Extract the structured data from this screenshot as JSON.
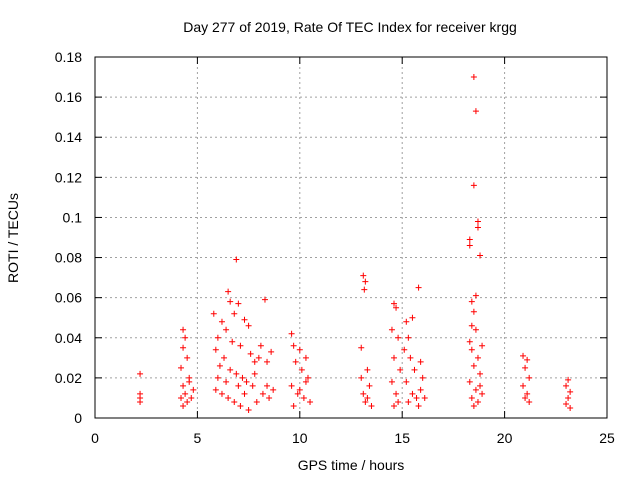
{
  "chart_data": {
    "type": "scatter",
    "title": "Day 277 of 2019, Rate Of TEC Index for receiver krgg",
    "xlabel": "GPS time / hours",
    "ylabel": "ROTI / TECUs",
    "xlim": [
      0,
      25
    ],
    "ylim": [
      0,
      0.18
    ],
    "xticks": [
      0,
      5,
      10,
      15,
      20,
      25
    ],
    "xtick_labels": [
      "0",
      "5",
      "10",
      "15",
      "20",
      "25"
    ],
    "yticks": [
      0,
      0.02,
      0.04,
      0.06,
      0.08,
      0.1,
      0.12,
      0.14,
      0.16,
      0.18
    ],
    "ytick_labels": [
      "0",
      "0.02",
      "0.04",
      "0.06",
      "0.08",
      "0.1",
      "0.12",
      "0.14",
      "0.16",
      "0.18"
    ],
    "grid": true,
    "marker": "+",
    "series_color": "#ff0000",
    "series": [
      {
        "name": "ROTI",
        "points": [
          [
            2.2,
            0.022
          ],
          [
            2.2,
            0.012
          ],
          [
            2.2,
            0.01
          ],
          [
            2.2,
            0.008
          ],
          [
            4.3,
            0.044
          ],
          [
            4.4,
            0.04
          ],
          [
            4.3,
            0.035
          ],
          [
            4.5,
            0.03
          ],
          [
            4.2,
            0.025
          ],
          [
            4.6,
            0.02
          ],
          [
            4.3,
            0.016
          ],
          [
            4.4,
            0.012
          ],
          [
            4.7,
            0.01
          ],
          [
            4.5,
            0.008
          ],
          [
            4.3,
            0.006
          ],
          [
            4.8,
            0.014
          ],
          [
            4.6,
            0.018
          ],
          [
            4.2,
            0.01
          ],
          [
            5.8,
            0.052
          ],
          [
            6.5,
            0.063
          ],
          [
            6.6,
            0.058
          ],
          [
            6.9,
            0.079
          ],
          [
            7.0,
            0.057
          ],
          [
            6.8,
            0.052
          ],
          [
            7.3,
            0.049
          ],
          [
            7.5,
            0.046
          ],
          [
            6.2,
            0.048
          ],
          [
            6.4,
            0.044
          ],
          [
            6.0,
            0.04
          ],
          [
            6.7,
            0.038
          ],
          [
            7.1,
            0.036
          ],
          [
            5.9,
            0.034
          ],
          [
            6.3,
            0.03
          ],
          [
            7.6,
            0.032
          ],
          [
            7.8,
            0.028
          ],
          [
            8.0,
            0.03
          ],
          [
            8.3,
            0.059
          ],
          [
            8.1,
            0.036
          ],
          [
            8.6,
            0.033
          ],
          [
            8.4,
            0.028
          ],
          [
            6.1,
            0.026
          ],
          [
            6.6,
            0.024
          ],
          [
            6.9,
            0.022
          ],
          [
            7.2,
            0.02
          ],
          [
            7.4,
            0.018
          ],
          [
            7.7,
            0.016
          ],
          [
            5.9,
            0.014
          ],
          [
            6.2,
            0.012
          ],
          [
            6.5,
            0.01
          ],
          [
            6.8,
            0.008
          ],
          [
            7.1,
            0.006
          ],
          [
            7.5,
            0.004
          ],
          [
            7.9,
            0.008
          ],
          [
            8.2,
            0.012
          ],
          [
            8.5,
            0.01
          ],
          [
            8.7,
            0.014
          ],
          [
            6.4,
            0.018
          ],
          [
            7.0,
            0.016
          ],
          [
            7.3,
            0.012
          ],
          [
            6.0,
            0.02
          ],
          [
            7.8,
            0.022
          ],
          [
            8.4,
            0.016
          ],
          [
            9.6,
            0.042
          ],
          [
            9.7,
            0.036
          ],
          [
            10.0,
            0.034
          ],
          [
            10.3,
            0.03
          ],
          [
            9.8,
            0.028
          ],
          [
            10.1,
            0.024
          ],
          [
            10.4,
            0.02
          ],
          [
            9.6,
            0.016
          ],
          [
            9.9,
            0.012
          ],
          [
            10.2,
            0.01
          ],
          [
            10.5,
            0.008
          ],
          [
            9.7,
            0.006
          ],
          [
            10.0,
            0.014
          ],
          [
            10.3,
            0.018
          ],
          [
            13.0,
            0.035
          ],
          [
            13.1,
            0.071
          ],
          [
            13.2,
            0.068
          ],
          [
            13.15,
            0.064
          ],
          [
            13.3,
            0.024
          ],
          [
            13.0,
            0.02
          ],
          [
            13.4,
            0.016
          ],
          [
            13.1,
            0.012
          ],
          [
            13.2,
            0.008
          ],
          [
            13.5,
            0.006
          ],
          [
            13.3,
            0.01
          ],
          [
            14.6,
            0.057
          ],
          [
            14.7,
            0.055
          ],
          [
            14.5,
            0.044
          ],
          [
            14.8,
            0.04
          ],
          [
            14.6,
            0.03
          ],
          [
            14.9,
            0.024
          ],
          [
            14.5,
            0.018
          ],
          [
            14.7,
            0.012
          ],
          [
            14.8,
            0.008
          ],
          [
            14.6,
            0.006
          ],
          [
            15.2,
            0.048
          ],
          [
            15.5,
            0.05
          ],
          [
            15.3,
            0.04
          ],
          [
            15.1,
            0.034
          ],
          [
            15.4,
            0.03
          ],
          [
            15.6,
            0.024
          ],
          [
            15.2,
            0.018
          ],
          [
            15.5,
            0.012
          ],
          [
            15.3,
            0.008
          ],
          [
            15.7,
            0.01
          ],
          [
            15.8,
            0.065
          ],
          [
            15.9,
            0.028
          ],
          [
            16.0,
            0.02
          ],
          [
            15.9,
            0.014
          ],
          [
            16.1,
            0.01
          ],
          [
            15.8,
            0.006
          ],
          [
            18.5,
            0.17
          ],
          [
            18.6,
            0.153
          ],
          [
            18.5,
            0.116
          ],
          [
            18.7,
            0.098
          ],
          [
            18.7,
            0.095
          ],
          [
            18.3,
            0.089
          ],
          [
            18.3,
            0.086
          ],
          [
            18.8,
            0.081
          ],
          [
            18.6,
            0.061
          ],
          [
            18.4,
            0.058
          ],
          [
            18.5,
            0.053
          ],
          [
            18.4,
            0.046
          ],
          [
            18.6,
            0.044
          ],
          [
            18.3,
            0.038
          ],
          [
            18.9,
            0.036
          ],
          [
            18.4,
            0.034
          ],
          [
            18.7,
            0.03
          ],
          [
            18.5,
            0.026
          ],
          [
            18.8,
            0.022
          ],
          [
            18.3,
            0.018
          ],
          [
            18.6,
            0.014
          ],
          [
            18.9,
            0.012
          ],
          [
            18.4,
            0.01
          ],
          [
            18.7,
            0.008
          ],
          [
            18.5,
            0.006
          ],
          [
            18.8,
            0.016
          ],
          [
            20.9,
            0.031
          ],
          [
            21.1,
            0.029
          ],
          [
            21.0,
            0.025
          ],
          [
            21.2,
            0.02
          ],
          [
            20.9,
            0.016
          ],
          [
            21.1,
            0.012
          ],
          [
            21.0,
            0.01
          ],
          [
            21.2,
            0.008
          ],
          [
            23.1,
            0.019
          ],
          [
            23.0,
            0.016
          ],
          [
            23.2,
            0.013
          ],
          [
            23.1,
            0.01
          ],
          [
            23.0,
            0.007
          ],
          [
            23.2,
            0.005
          ]
        ]
      }
    ]
  }
}
